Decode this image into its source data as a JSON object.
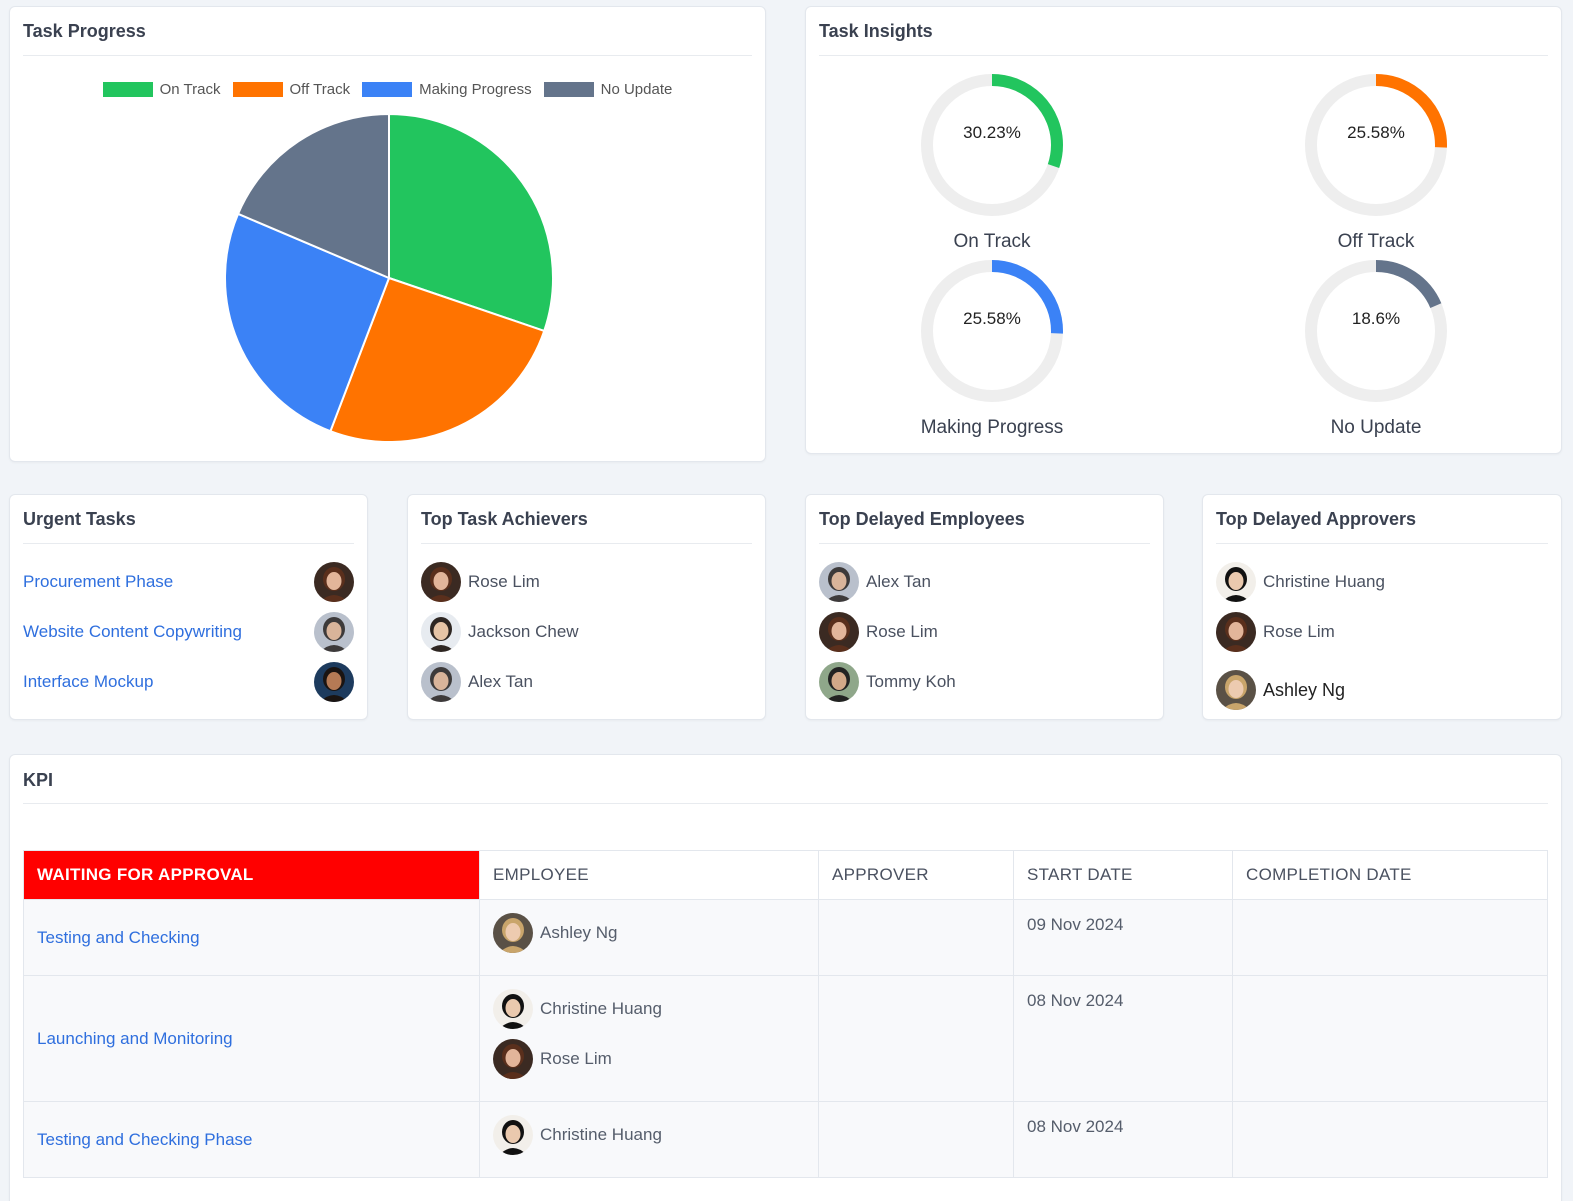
{
  "task_progress": {
    "title": "Task Progress",
    "legend": [
      {
        "label": "On Track",
        "color": "#22c55e"
      },
      {
        "label": "Off Track",
        "color": "#ff7300"
      },
      {
        "label": "Making Progress",
        "color": "#3b82f6"
      },
      {
        "label": "No Update",
        "color": "#64748b"
      }
    ],
    "chart_data": {
      "type": "pie",
      "categories": [
        "On Track",
        "Off Track",
        "Making Progress",
        "No Update"
      ],
      "values": [
        30.23,
        25.58,
        25.58,
        18.6
      ],
      "colors": [
        "#22c55e",
        "#ff7300",
        "#3b82f6",
        "#64748b"
      ],
      "legend_position": "top"
    }
  },
  "task_insights": {
    "title": "Task Insights",
    "items": [
      {
        "label": "On Track",
        "value": 30.23,
        "text": "30.23%",
        "color": "#22c55e"
      },
      {
        "label": "Off Track",
        "value": 25.58,
        "text": "25.58%",
        "color": "#ff7300"
      },
      {
        "label": "Making Progress",
        "value": 25.58,
        "text": "25.58%",
        "color": "#3b82f6"
      },
      {
        "label": "No Update",
        "value": 18.6,
        "text": "18.6%",
        "color": "#64748b"
      }
    ]
  },
  "urgent_tasks": {
    "title": "Urgent Tasks",
    "items": [
      {
        "label": "Procurement Phase",
        "avatar": "woman-curly"
      },
      {
        "label": "Website Content Copywriting",
        "avatar": "group-photo"
      },
      {
        "label": "Interface Mockup",
        "avatar": "woman-dark"
      }
    ]
  },
  "top_achievers": {
    "title": "Top Task Achievers",
    "items": [
      {
        "name": "Rose Lim",
        "avatar": "woman-curly"
      },
      {
        "name": "Jackson Chew",
        "avatar": "couple-light"
      },
      {
        "name": "Alex Tan",
        "avatar": "group-photo"
      }
    ]
  },
  "top_delayed_employees": {
    "title": "Top Delayed Employees",
    "items": [
      {
        "name": "Alex Tan",
        "avatar": "group-photo"
      },
      {
        "name": "Rose Lim",
        "avatar": "woman-curly"
      },
      {
        "name": "Tommy Koh",
        "avatar": "man-outdoor"
      }
    ]
  },
  "top_delayed_approvers": {
    "title": "Top Delayed Approvers",
    "items": [
      {
        "name": "Christine Huang",
        "avatar": "woman-black-hair"
      },
      {
        "name": "Rose Lim",
        "avatar": "woman-curly"
      },
      {
        "name": "Ashley Ng",
        "avatar": "woman-blonde"
      }
    ]
  },
  "kpi": {
    "title": "KPI",
    "headers": [
      "WAITING FOR APPROVAL",
      "EMPLOYEE",
      "APPROVER",
      "START DATE",
      "COMPLETION DATE"
    ],
    "rows": [
      {
        "task": "Testing and Checking",
        "employees": [
          {
            "name": "Ashley Ng",
            "avatar": "woman-blonde"
          }
        ],
        "approver": "",
        "start": "09 Nov 2024",
        "completion": ""
      },
      {
        "task": "Launching and Monitoring",
        "employees": [
          {
            "name": "Christine Huang",
            "avatar": "woman-black-hair"
          },
          {
            "name": "Rose Lim",
            "avatar": "woman-curly"
          }
        ],
        "approver": "",
        "start": "08 Nov 2024",
        "completion": ""
      },
      {
        "task": "Testing and Checking Phase",
        "employees": [
          {
            "name": "Christine Huang",
            "avatar": "woman-black-hair"
          }
        ],
        "approver": "",
        "start": "08 Nov 2024",
        "completion": ""
      }
    ]
  }
}
